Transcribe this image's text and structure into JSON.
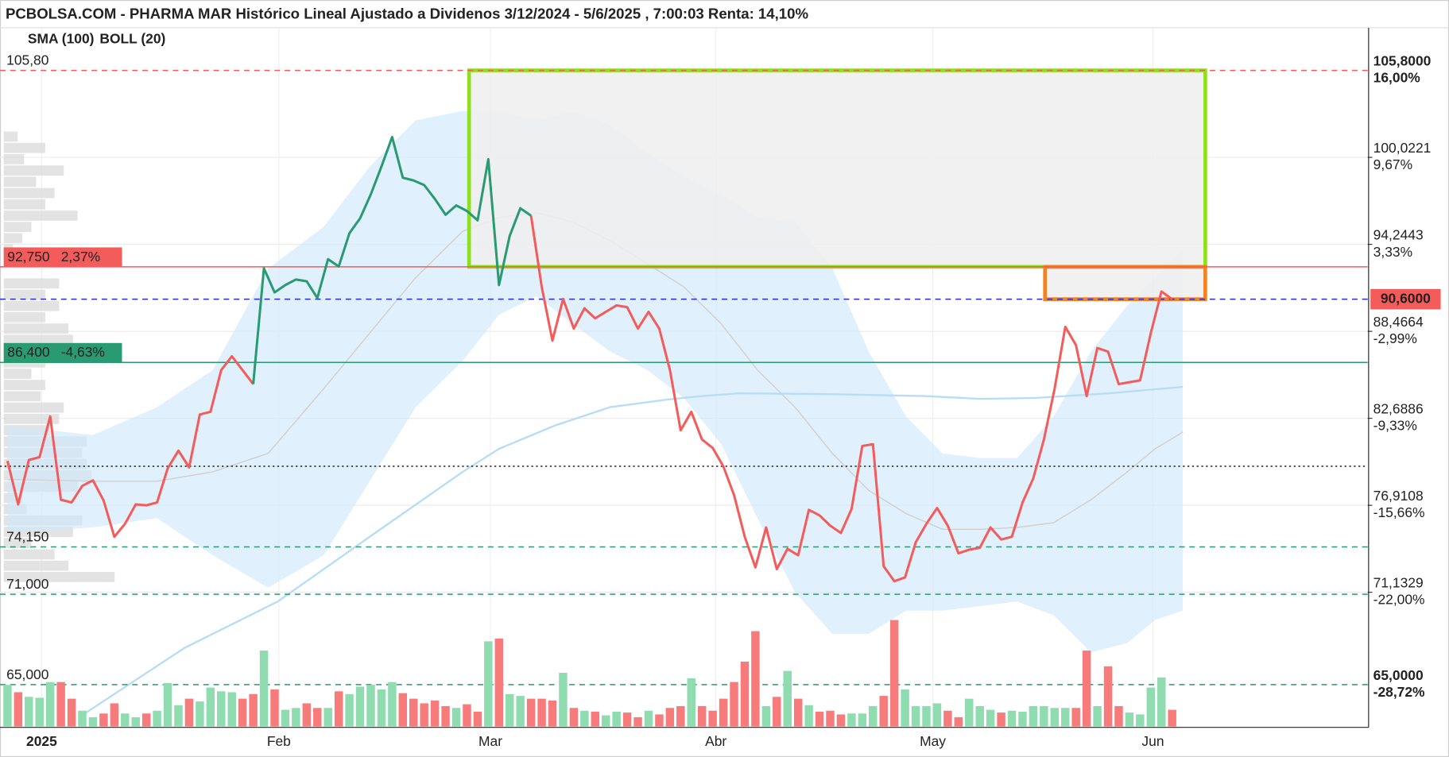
{
  "chart_data": {
    "type": "line",
    "title": "PCBOLSA.COM - PHARMA MAR Histórico Lineal Ajustado a Dividenos 3/12/2024 - 5/6/2025 , 7:00:03 Renta: 14,10%",
    "legend": [
      {
        "label": "SMA (100)",
        "color": "#a9d6f7"
      },
      {
        "label": "BOLL (20)",
        "color": "#d0d0d0"
      }
    ],
    "xlim": [
      -0.7,
      127.3
    ],
    "ylim": [
      62.22,
      108.63
    ],
    "y2lim": [
      -31.78,
      19.11
    ],
    "xticks": [
      {
        "value": 3.2,
        "label": "2025"
      },
      {
        "value": 25.4,
        "label": "Feb"
      },
      {
        "value": 45.2,
        "label": "Mar"
      },
      {
        "value": 66.3,
        "label": "Abr"
      },
      {
        "value": 86.6,
        "label": "May"
      },
      {
        "value": 107.2,
        "label": "Jun"
      }
    ],
    "yticks": [
      {
        "value": 100.0221,
        "label": "100,0221"
      },
      {
        "value": 94.2443,
        "label": "94,2443"
      },
      {
        "value": 88.4664,
        "label": "88,4664"
      },
      {
        "value": 82.6886,
        "label": "82,6886"
      },
      {
        "value": 76.9108,
        "label": "76,9108"
      },
      {
        "value": 71.1329,
        "label": "71,1329"
      }
    ],
    "y2ticks": [
      {
        "value": 9.67,
        "label": "9,67%"
      },
      {
        "value": 3.33,
        "label": "3,33%"
      },
      {
        "value": -2.99,
        "label": "-2,99%"
      },
      {
        "value": -9.33,
        "label": "-9,33%"
      },
      {
        "value": -15.66,
        "label": "-15,66%"
      },
      {
        "value": -22.0,
        "label": "-22,00%"
      }
    ],
    "grid": true,
    "series": [
      {
        "color": "#f45b5b",
        "values": [
          79.86,
          76.97,
          79.92,
          80.11,
          82.81,
          77.28,
          77.1,
          78.2,
          78.57,
          77.22,
          74.82,
          75.68,
          76.97,
          76.91,
          77.1,
          79.37,
          80.54,
          79.43,
          82.94,
          83.12,
          85.89,
          86.81,
          85.89,
          84.96,
          null,
          null,
          null,
          null,
          null,
          null,
          null,
          null,
          null,
          null,
          null,
          null,
          null,
          null,
          null,
          null,
          null,
          null,
          null,
          null,
          null,
          null,
          null,
          null,
          null,
          96.15,
          91.42,
          87.85,
          90.62,
          88.65,
          90.0,
          89.33,
          89.76,
          90.19,
          90.07,
          88.65,
          89.76,
          88.65,
          85.89,
          81.89,
          83.12,
          81.28,
          80.72,
          79.49,
          77.59,
          74.82,
          72.79,
          75.44,
          72.67,
          74.02,
          73.59,
          76.61,
          76.24,
          75.56,
          75.07,
          76.67,
          80.85,
          80.97,
          72.86,
          71.87,
          72.12,
          74.45,
          75.68,
          76.73,
          75.56,
          73.72,
          73.96,
          74.09,
          75.44,
          74.64,
          74.82,
          77.1,
          78.69,
          81.28,
          84.66,
          88.77,
          87.55,
          84.16,
          87.36,
          87.12,
          84.96,
          85.09,
          85.21,
          88.34,
          91.11,
          90.6
        ]
      },
      {
        "color": "#2a9a72",
        "values": [
          null,
          null,
          null,
          null,
          null,
          null,
          null,
          null,
          null,
          null,
          null,
          null,
          null,
          null,
          null,
          null,
          null,
          null,
          null,
          null,
          null,
          null,
          null,
          84.96,
          92.65,
          91.05,
          91.54,
          91.91,
          91.79,
          90.68,
          93.26,
          92.77,
          94.98,
          95.97,
          97.56,
          99.41,
          101.37,
          98.67,
          98.49,
          98.18,
          97.26,
          96.21,
          96.83,
          96.46,
          95.84,
          99.9,
          91.54,
          94.8,
          96.64,
          96.15,
          null,
          null,
          null,
          null,
          null,
          null,
          null,
          null,
          null,
          null,
          null,
          null,
          null,
          null,
          null,
          null,
          null,
          null,
          null,
          null,
          null,
          null,
          null,
          null,
          null,
          null,
          null,
          null,
          null,
          null,
          null,
          null,
          null,
          null,
          null,
          null,
          null,
          null,
          null,
          null,
          null,
          null,
          null,
          null,
          null,
          null,
          null,
          null,
          null,
          null,
          null,
          null,
          null,
          null,
          null,
          null,
          null,
          null,
          null,
          null
        ]
      }
    ],
    "bollinger": {
      "fill": "#cfe8fb",
      "middle_color": "#cfcfcf",
      "x": [
        0,
        8,
        14,
        19.2,
        24.4,
        29.6,
        33.9,
        38.2,
        42.6,
        46,
        49.5,
        52.9,
        56.4,
        59.9,
        63.3,
        66.8,
        70.2,
        73.7,
        77.2,
        80.6,
        84.1,
        87.5,
        91,
        94.5,
        97.9,
        101.4,
        104.8,
        107.4,
        110
      ],
      "upper": [
        82.2,
        81.58,
        83.43,
        85.89,
        92.65,
        95.41,
        99.41,
        102.48,
        103.1,
        103.1,
        102.48,
        103.1,
        102.17,
        100.33,
        98.79,
        97.56,
        96.03,
        95.72,
        92.65,
        87.12,
        82.81,
        80.36,
        80.05,
        80.05,
        82.81,
        87.12,
        90.19,
        92.03,
        93.88
      ],
      "lower": [
        75.13,
        75.44,
        76.05,
        73.59,
        71.44,
        73.59,
        78.51,
        83.43,
        86.5,
        89.57,
        90.8,
        88.96,
        87.12,
        85.89,
        84.04,
        80.97,
        76.05,
        71.14,
        68.37,
        68.37,
        69.91,
        69.91,
        70.21,
        70.52,
        69.6,
        67.14,
        67.76,
        69.29,
        69.91
      ],
      "middle": [
        78.63,
        78.51,
        78.51,
        79.13,
        80.36,
        84.66,
        88.35,
        92.03,
        95.11,
        96.03,
        96.34,
        95.72,
        94.49,
        92.95,
        91.42,
        88.96,
        85.89,
        83.43,
        80.36,
        77.9,
        76.36,
        75.32,
        75.32,
        75.44,
        75.75,
        77.28,
        79.13,
        80.66,
        81.77
      ]
    },
    "sma": {
      "color": "#b7dcf5",
      "x": [
        7.1,
        16.6,
        25.3,
        33.9,
        42.6,
        46,
        51.2,
        56.4,
        61.6,
        65,
        68.5,
        77.2,
        85.8,
        91,
        96.2,
        103.1,
        110
      ],
      "values": [
        63.02,
        67.45,
        70.52,
        74.82,
        79.13,
        80.66,
        82.2,
        83.43,
        83.92,
        84.17,
        84.35,
        84.29,
        84.17,
        83.98,
        84.04,
        84.35,
        84.78
      ]
    },
    "zones": [
      {
        "x": [
          43.2,
          112.1
        ],
        "y": [
          92.75,
          105.8
        ],
        "fill": "#eeeeee",
        "stroke": "#8ee01c"
      },
      {
        "x": [
          97.1,
          112.1
        ],
        "y": [
          90.6,
          92.75
        ],
        "fill": "#eeeeee",
        "stroke": "#f58220"
      }
    ],
    "levels": [
      {
        "value": 105.8,
        "color": "#f45b5b",
        "dash": "6 5",
        "left_label": "105,80",
        "right_label": "105,8000",
        "right_pct": "16,00%",
        "pct_color": "#2a9a72"
      },
      {
        "value": 92.75,
        "color": "#f45b5b",
        "dash": "none",
        "left_label": "92,750",
        "left_pct": "2,37%",
        "box": true
      },
      {
        "value": 90.6,
        "color": "#2a2ae0",
        "dash": "6 5",
        "right_label": "90,6000",
        "box": true,
        "box_color": "#f45b5b"
      },
      {
        "value": 86.4,
        "color": "#2a9a72",
        "dash": "none",
        "left_label": "86,400",
        "left_pct": "-4,63%",
        "box": true
      },
      {
        "value": 79.5,
        "color": "#222222",
        "dash": "2 3"
      },
      {
        "value": 74.15,
        "color": "#2a9a72",
        "dash": "6 5",
        "left_label": "74,150"
      },
      {
        "value": 71.0,
        "color": "#2a9a72",
        "dash": "6 5",
        "left_label": "71,000"
      },
      {
        "value": 65.0,
        "color": "#2a9a72",
        "dash": "6 5",
        "left_label": "65,000",
        "right_label": "65,0000",
        "right_pct": "-28,72%",
        "pct_color": "#f24a4a"
      }
    ],
    "volume": {
      "lim": [
        0,
        130
      ],
      "up_color": "#8fdcb0",
      "down_color": "#f77b7b",
      "values": [
        45,
        37,
        32,
        31,
        48,
        48,
        30,
        17,
        10,
        14,
        25,
        14,
        10,
        14,
        17,
        47,
        23,
        30,
        27,
        42,
        38,
        37,
        30,
        35,
        82,
        40,
        18,
        20,
        25,
        20,
        20,
        38,
        35,
        43,
        45,
        40,
        48,
        36,
        30,
        25,
        28,
        22,
        20,
        24,
        16,
        92,
        95,
        35,
        33,
        30,
        30,
        28,
        58,
        20,
        17,
        16,
        12,
        16,
        15,
        10,
        17,
        13,
        20,
        22,
        52,
        22,
        17,
        30,
        48,
        70,
        103,
        22,
        32,
        60,
        30,
        23,
        16,
        17,
        13,
        14,
        14,
        22,
        33,
        115,
        40,
        22,
        22,
        25,
        17,
        10,
        30,
        22,
        18,
        15,
        17,
        16,
        22,
        22,
        20,
        20,
        20,
        82,
        22,
        65,
        22,
        15,
        13,
        42,
        53,
        18
      ]
    },
    "volume_profile": {
      "lim": [
        0,
        130
      ],
      "color": "#dcdcdc",
      "levels": [
        101.4,
        100.65,
        99.9,
        99.15,
        98.4,
        97.65,
        96.9,
        96.15,
        95.4,
        94.65,
        93.9,
        93.15,
        92.4,
        91.65,
        90.9,
        90.15,
        89.4,
        88.65,
        87.9,
        87.15,
        86.4,
        85.65,
        84.9,
        84.15,
        83.4,
        82.65,
        81.9,
        81.15,
        80.4,
        79.65,
        78.9,
        78.15,
        77.4,
        76.65,
        75.9,
        75.15,
        74.4,
        73.65,
        72.9,
        72.15
      ],
      "values": [
        15,
        45,
        22,
        65,
        35,
        55,
        45,
        80,
        30,
        20,
        10,
        0,
        0,
        60,
        45,
        60,
        45,
        70,
        75,
        50,
        45,
        30,
        45,
        40,
        65,
        60,
        50,
        90,
        85,
        90,
        95,
        80,
        20,
        25,
        85,
        75,
        30,
        55,
        70,
        120
      ]
    }
  }
}
